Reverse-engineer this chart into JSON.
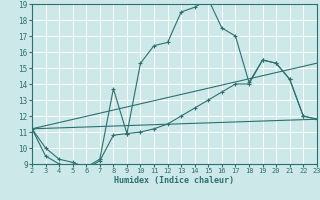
{
  "xlabel": "Humidex (Indice chaleur)",
  "xlim": [
    2,
    23
  ],
  "ylim": [
    9,
    19
  ],
  "xticks": [
    2,
    3,
    4,
    5,
    6,
    7,
    8,
    9,
    10,
    11,
    12,
    13,
    14,
    15,
    16,
    17,
    18,
    19,
    20,
    21,
    22,
    23
  ],
  "yticks": [
    9,
    10,
    11,
    12,
    13,
    14,
    15,
    16,
    17,
    18,
    19
  ],
  "bg_color": "#cde8e8",
  "grid_color": "#ffffff",
  "line_color": "#2d7070",
  "curve1_x": [
    2,
    3,
    4,
    5,
    6,
    7,
    8,
    9,
    10,
    11,
    12,
    13,
    14,
    15,
    16,
    17,
    18,
    19,
    20,
    21,
    22,
    23
  ],
  "curve1_y": [
    11.2,
    10.0,
    9.3,
    9.1,
    8.8,
    9.3,
    13.7,
    10.9,
    15.3,
    16.4,
    16.6,
    18.5,
    18.8,
    19.3,
    17.5,
    17.0,
    14.1,
    15.5,
    15.3,
    14.3,
    12.0,
    11.8
  ],
  "curve2_x": [
    2,
    3,
    4,
    5,
    6,
    7,
    8,
    9,
    10,
    11,
    12,
    13,
    14,
    15,
    16,
    17,
    18,
    19,
    20,
    21,
    22,
    23
  ],
  "curve2_y": [
    11.2,
    9.5,
    9.0,
    8.8,
    8.7,
    9.2,
    10.8,
    10.9,
    11.0,
    11.2,
    11.5,
    12.0,
    12.5,
    13.0,
    13.5,
    14.0,
    14.0,
    15.5,
    15.3,
    14.3,
    12.0,
    11.8
  ],
  "trend1_x": [
    2,
    23
  ],
  "trend1_y": [
    11.2,
    15.3
  ],
  "trend2_x": [
    2,
    23
  ],
  "trend2_y": [
    11.2,
    11.8
  ]
}
